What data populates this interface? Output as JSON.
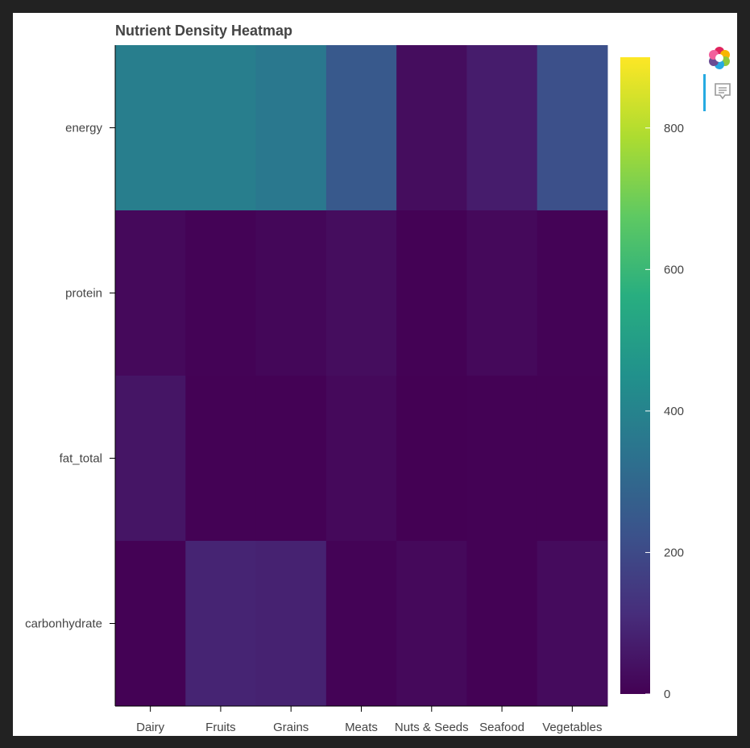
{
  "toolbar": {
    "logo_icon": "bokeh-logo-icon",
    "hover_icon": "hover-tool-icon",
    "accent_color": "#26aae1"
  },
  "chart_data": {
    "type": "heatmap",
    "title": "Nutrient Density Heatmap",
    "colormap": "viridis",
    "x_categories": [
      "Dairy",
      "Fruits",
      "Grains",
      "Meats",
      "Nuts & Seeds",
      "Seafood",
      "Vegetables"
    ],
    "y_categories": [
      "energy",
      "protein",
      "fat_total",
      "carbonhydrate"
    ],
    "values": [
      [
        380,
        380,
        360,
        250,
        30,
        70,
        220
      ],
      [
        20,
        5,
        15,
        30,
        3,
        20,
        5
      ],
      [
        50,
        2,
        2,
        20,
        1,
        2,
        2
      ],
      [
        3,
        90,
        85,
        5,
        20,
        3,
        25
      ]
    ],
    "colorbar": {
      "range": [
        0,
        900
      ],
      "ticks": [
        0,
        200,
        400,
        600,
        800
      ]
    }
  }
}
